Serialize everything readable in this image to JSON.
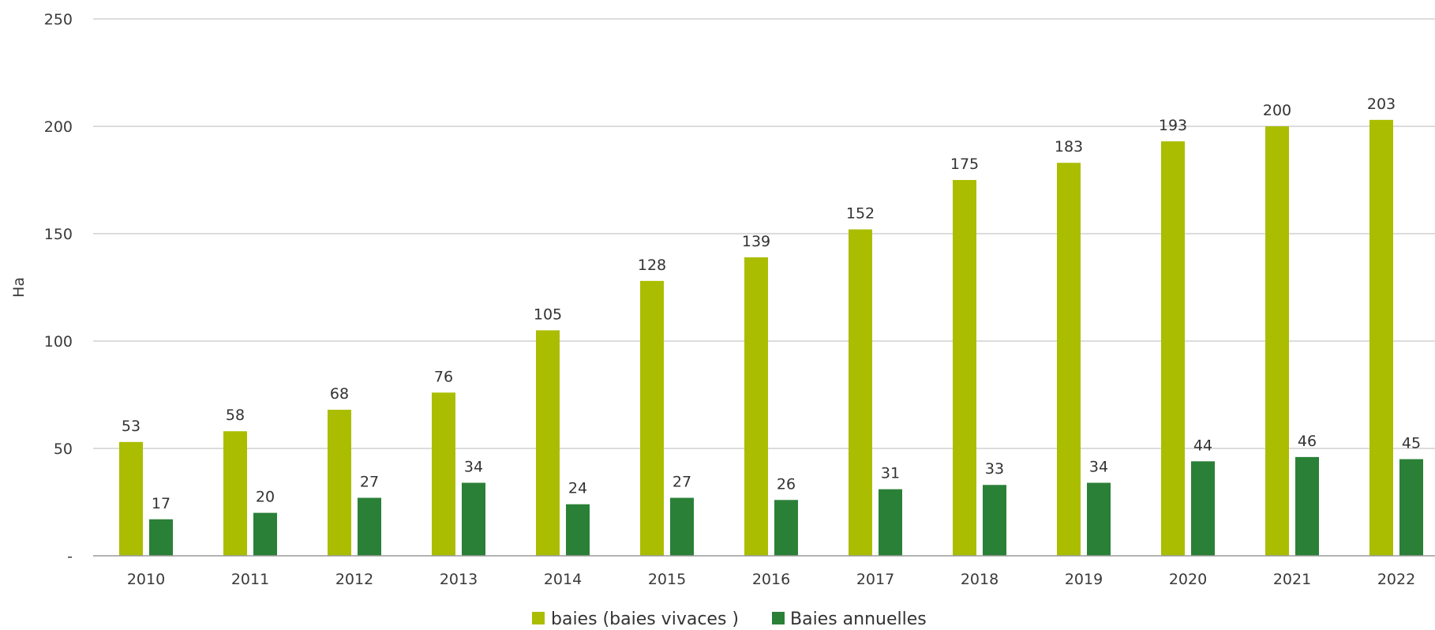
{
  "chart_data": {
    "type": "bar",
    "title": "",
    "xlabel": "",
    "ylabel": "Ha",
    "ylim": [
      0,
      250
    ],
    "yticks": [
      0,
      50,
      100,
      150,
      200,
      250
    ],
    "ytick_labels": [
      "-",
      "50",
      "100",
      "150",
      "200",
      "250"
    ],
    "grid": true,
    "legend_position": "bottom",
    "categories": [
      "2010",
      "2011",
      "2012",
      "2013",
      "2014",
      "2015",
      "2016",
      "2017",
      "2018",
      "2019",
      "2020",
      "2021",
      "2022"
    ],
    "series": [
      {
        "name": "baies (baies vivaces )",
        "color": "#aabd00",
        "values": [
          53,
          58,
          68,
          76,
          105,
          128,
          139,
          152,
          175,
          183,
          193,
          200,
          203
        ]
      },
      {
        "name": "Baies annuelles",
        "color": "#2a8037",
        "values": [
          17,
          20,
          27,
          34,
          24,
          27,
          26,
          31,
          33,
          34,
          44,
          46,
          45
        ]
      }
    ]
  }
}
